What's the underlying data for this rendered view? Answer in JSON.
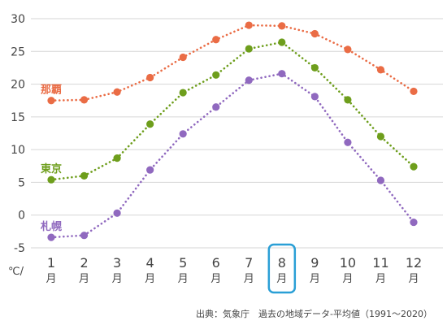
{
  "chart_data": {
    "type": "line",
    "x": [
      "1",
      "2",
      "3",
      "4",
      "5",
      "6",
      "7",
      "8",
      "9",
      "10",
      "11",
      "12"
    ],
    "x_suffix": "月",
    "y_unit": "℃/",
    "ylim": [
      -5,
      30
    ],
    "yticks": [
      -5,
      0,
      5,
      10,
      15,
      20,
      25,
      30
    ],
    "grid": true,
    "highlight_x": "8",
    "series": [
      {
        "name": "那覇",
        "color": "#ea6c45",
        "values": [
          17.5,
          17.6,
          18.8,
          21.0,
          24.1,
          26.8,
          29.0,
          28.9,
          27.7,
          25.3,
          22.2,
          18.9
        ]
      },
      {
        "name": "東京",
        "color": "#6e9e1c",
        "values": [
          5.4,
          6.0,
          8.7,
          13.9,
          18.7,
          21.4,
          25.4,
          26.4,
          22.5,
          17.6,
          12.0,
          7.4
        ]
      },
      {
        "name": "札幌",
        "color": "#9069bf",
        "values": [
          -3.4,
          -3.1,
          0.3,
          6.9,
          12.4,
          16.5,
          20.6,
          21.6,
          18.1,
          11.1,
          5.3,
          -1.1
        ]
      }
    ]
  },
  "source": "出典：気象庁　過去の地域データ-平均値（1991～2020）"
}
